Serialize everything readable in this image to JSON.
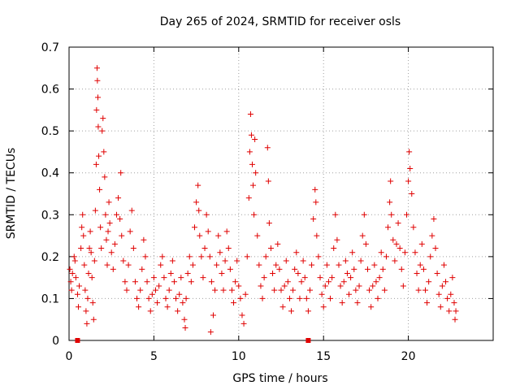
{
  "chart_data": {
    "type": "scatter",
    "title": "Day 265 of 2024, SRMTID for receiver osls",
    "xlabel": "GPS time / hours",
    "ylabel": "SRMTID / TECUs",
    "xlim": [
      0,
      25
    ],
    "ylim": [
      0,
      0.7
    ],
    "xticks": [
      0,
      5,
      10,
      15,
      20
    ],
    "xtick_labels": [
      "0",
      "5",
      "10",
      "15",
      "20"
    ],
    "yticks": [
      0,
      0.1,
      0.2,
      0.3,
      0.4,
      0.5,
      0.6,
      0.7
    ],
    "ytick_labels": [
      "0",
      "0.1",
      "0.2",
      "0.3",
      "0.4",
      "0.5",
      "0.6",
      "0.7"
    ],
    "grid": true,
    "marker": "+",
    "color": "#e00000",
    "series": [
      {
        "name": "SRMTID",
        "points": [
          [
            0.05,
            0.17
          ],
          [
            0.1,
            0.14
          ],
          [
            0.15,
            0.12
          ],
          [
            0.2,
            0.16
          ],
          [
            0.3,
            0.2
          ],
          [
            0.35,
            0.19
          ],
          [
            0.4,
            0.15
          ],
          [
            0.5,
            0.11
          ],
          [
            0.55,
            0.08
          ],
          [
            0.6,
            0.13
          ],
          [
            0.7,
            0.22
          ],
          [
            0.75,
            0.27
          ],
          [
            0.8,
            0.3
          ],
          [
            0.85,
            0.25
          ],
          [
            0.9,
            0.18
          ],
          [
            0.95,
            0.12
          ],
          [
            1.0,
            0.07
          ],
          [
            1.05,
            0.04
          ],
          [
            1.1,
            0.1
          ],
          [
            1.15,
            0.16
          ],
          [
            1.2,
            0.22
          ],
          [
            1.25,
            0.26
          ],
          [
            1.3,
            0.21
          ],
          [
            1.35,
            0.15
          ],
          [
            1.4,
            0.09
          ],
          [
            1.45,
            0.05
          ],
          [
            1.5,
            0.19
          ],
          [
            1.55,
            0.31
          ],
          [
            1.6,
            0.42
          ],
          [
            1.62,
            0.55
          ],
          [
            1.65,
            0.65
          ],
          [
            1.67,
            0.62
          ],
          [
            1.7,
            0.58
          ],
          [
            1.72,
            0.51
          ],
          [
            1.75,
            0.44
          ],
          [
            1.8,
            0.36
          ],
          [
            1.85,
            0.27
          ],
          [
            1.9,
            0.22
          ],
          [
            1.95,
            0.5
          ],
          [
            2.0,
            0.53
          ],
          [
            2.05,
            0.45
          ],
          [
            2.1,
            0.39
          ],
          [
            2.15,
            0.3
          ],
          [
            2.2,
            0.24
          ],
          [
            2.25,
            0.18
          ],
          [
            2.3,
            0.26
          ],
          [
            2.35,
            0.33
          ],
          [
            2.4,
            0.28
          ],
          [
            2.5,
            0.21
          ],
          [
            2.6,
            0.17
          ],
          [
            2.7,
            0.23
          ],
          [
            2.8,
            0.3
          ],
          [
            2.9,
            0.34
          ],
          [
            3.0,
            0.29
          ],
          [
            3.05,
            0.4
          ],
          [
            3.1,
            0.25
          ],
          [
            3.2,
            0.19
          ],
          [
            3.3,
            0.14
          ],
          [
            3.4,
            0.12
          ],
          [
            3.5,
            0.18
          ],
          [
            3.6,
            0.26
          ],
          [
            3.7,
            0.31
          ],
          [
            3.8,
            0.22
          ],
          [
            3.9,
            0.14
          ],
          [
            4.0,
            0.1
          ],
          [
            4.1,
            0.08
          ],
          [
            4.2,
            0.12
          ],
          [
            4.3,
            0.17
          ],
          [
            4.4,
            0.24
          ],
          [
            4.5,
            0.2
          ],
          [
            4.6,
            0.14
          ],
          [
            4.7,
            0.1
          ],
          [
            4.8,
            0.07
          ],
          [
            4.9,
            0.11
          ],
          [
            5.0,
            0.15
          ],
          [
            5.1,
            0.12
          ],
          [
            5.2,
            0.09
          ],
          [
            5.3,
            0.13
          ],
          [
            5.4,
            0.18
          ],
          [
            5.5,
            0.2
          ],
          [
            5.6,
            0.15
          ],
          [
            5.7,
            0.1
          ],
          [
            5.8,
            0.08
          ],
          [
            5.9,
            0.12
          ],
          [
            6.0,
            0.16
          ],
          [
            6.1,
            0.19
          ],
          [
            6.2,
            0.14
          ],
          [
            6.3,
            0.1
          ],
          [
            6.4,
            0.07
          ],
          [
            6.5,
            0.11
          ],
          [
            6.6,
            0.15
          ],
          [
            6.7,
            0.09
          ],
          [
            6.8,
            0.05
          ],
          [
            6.85,
            0.03
          ],
          [
            6.9,
            0.1
          ],
          [
            7.0,
            0.16
          ],
          [
            7.1,
            0.2
          ],
          [
            7.2,
            0.14
          ],
          [
            7.3,
            0.18
          ],
          [
            7.4,
            0.27
          ],
          [
            7.5,
            0.33
          ],
          [
            7.6,
            0.37
          ],
          [
            7.65,
            0.31
          ],
          [
            7.7,
            0.25
          ],
          [
            7.8,
            0.2
          ],
          [
            7.9,
            0.15
          ],
          [
            8.0,
            0.22
          ],
          [
            8.1,
            0.3
          ],
          [
            8.2,
            0.26
          ],
          [
            8.3,
            0.2
          ],
          [
            8.35,
            0.02
          ],
          [
            8.4,
            0.14
          ],
          [
            8.5,
            0.06
          ],
          [
            8.6,
            0.12
          ],
          [
            8.7,
            0.18
          ],
          [
            8.8,
            0.25
          ],
          [
            8.9,
            0.21
          ],
          [
            9.0,
            0.16
          ],
          [
            9.1,
            0.12
          ],
          [
            9.2,
            0.19
          ],
          [
            9.3,
            0.26
          ],
          [
            9.4,
            0.22
          ],
          [
            9.5,
            0.17
          ],
          [
            9.6,
            0.12
          ],
          [
            9.7,
            0.09
          ],
          [
            9.8,
            0.14
          ],
          [
            9.9,
            0.19
          ],
          [
            10.0,
            0.13
          ],
          [
            10.1,
            0.1
          ],
          [
            10.2,
            0.06
          ],
          [
            10.3,
            0.04
          ],
          [
            10.4,
            0.11
          ],
          [
            10.5,
            0.2
          ],
          [
            10.6,
            0.34
          ],
          [
            10.65,
            0.45
          ],
          [
            10.7,
            0.54
          ],
          [
            10.75,
            0.49
          ],
          [
            10.8,
            0.42
          ],
          [
            10.85,
            0.37
          ],
          [
            10.9,
            0.3
          ],
          [
            10.95,
            0.48
          ],
          [
            11.0,
            0.4
          ],
          [
            11.1,
            0.25
          ],
          [
            11.2,
            0.18
          ],
          [
            11.3,
            0.13
          ],
          [
            11.4,
            0.1
          ],
          [
            11.5,
            0.15
          ],
          [
            11.6,
            0.2
          ],
          [
            11.7,
            0.46
          ],
          [
            11.75,
            0.38
          ],
          [
            11.8,
            0.28
          ],
          [
            11.9,
            0.22
          ],
          [
            12.0,
            0.16
          ],
          [
            12.1,
            0.12
          ],
          [
            12.2,
            0.18
          ],
          [
            12.3,
            0.23
          ],
          [
            12.4,
            0.17
          ],
          [
            12.5,
            0.12
          ],
          [
            12.6,
            0.08
          ],
          [
            12.7,
            0.13
          ],
          [
            12.8,
            0.19
          ],
          [
            12.9,
            0.14
          ],
          [
            13.0,
            0.1
          ],
          [
            13.1,
            0.07
          ],
          [
            13.2,
            0.12
          ],
          [
            13.3,
            0.17
          ],
          [
            13.4,
            0.21
          ],
          [
            13.5,
            0.16
          ],
          [
            13.6,
            0.1
          ],
          [
            13.7,
            0.14
          ],
          [
            13.8,
            0.19
          ],
          [
            13.9,
            0.15
          ],
          [
            14.0,
            0.1
          ],
          [
            14.1,
            0.07
          ],
          [
            14.2,
            0.12
          ],
          [
            14.3,
            0.18
          ],
          [
            14.4,
            0.29
          ],
          [
            14.5,
            0.36
          ],
          [
            14.55,
            0.33
          ],
          [
            14.6,
            0.25
          ],
          [
            14.7,
            0.2
          ],
          [
            14.8,
            0.15
          ],
          [
            14.9,
            0.11
          ],
          [
            15.0,
            0.08
          ],
          [
            15.1,
            0.13
          ],
          [
            15.2,
            0.18
          ],
          [
            15.3,
            0.14
          ],
          [
            15.4,
            0.1
          ],
          [
            15.5,
            0.15
          ],
          [
            15.6,
            0.22
          ],
          [
            15.7,
            0.3
          ],
          [
            15.8,
            0.24
          ],
          [
            15.9,
            0.18
          ],
          [
            16.0,
            0.13
          ],
          [
            16.1,
            0.09
          ],
          [
            16.2,
            0.14
          ],
          [
            16.3,
            0.19
          ],
          [
            16.4,
            0.16
          ],
          [
            16.5,
            0.11
          ],
          [
            16.6,
            0.15
          ],
          [
            16.7,
            0.21
          ],
          [
            16.8,
            0.17
          ],
          [
            16.9,
            0.12
          ],
          [
            17.0,
            0.09
          ],
          [
            17.1,
            0.13
          ],
          [
            17.2,
            0.19
          ],
          [
            17.3,
            0.25
          ],
          [
            17.4,
            0.3
          ],
          [
            17.5,
            0.23
          ],
          [
            17.6,
            0.17
          ],
          [
            17.7,
            0.12
          ],
          [
            17.8,
            0.08
          ],
          [
            17.9,
            0.13
          ],
          [
            18.0,
            0.18
          ],
          [
            18.1,
            0.14
          ],
          [
            18.2,
            0.1
          ],
          [
            18.3,
            0.15
          ],
          [
            18.4,
            0.21
          ],
          [
            18.5,
            0.17
          ],
          [
            18.6,
            0.12
          ],
          [
            18.7,
            0.2
          ],
          [
            18.8,
            0.27
          ],
          [
            18.9,
            0.33
          ],
          [
            18.95,
            0.38
          ],
          [
            19.0,
            0.3
          ],
          [
            19.1,
            0.24
          ],
          [
            19.2,
            0.19
          ],
          [
            19.3,
            0.23
          ],
          [
            19.4,
            0.28
          ],
          [
            19.5,
            0.22
          ],
          [
            19.6,
            0.17
          ],
          [
            19.7,
            0.13
          ],
          [
            19.8,
            0.21
          ],
          [
            19.9,
            0.3
          ],
          [
            20.0,
            0.38
          ],
          [
            20.05,
            0.45
          ],
          [
            20.1,
            0.41
          ],
          [
            20.2,
            0.35
          ],
          [
            20.3,
            0.27
          ],
          [
            20.4,
            0.21
          ],
          [
            20.5,
            0.16
          ],
          [
            20.6,
            0.12
          ],
          [
            20.7,
            0.18
          ],
          [
            20.8,
            0.23
          ],
          [
            20.9,
            0.17
          ],
          [
            21.0,
            0.12
          ],
          [
            21.1,
            0.09
          ],
          [
            21.2,
            0.14
          ],
          [
            21.3,
            0.2
          ],
          [
            21.4,
            0.25
          ],
          [
            21.5,
            0.29
          ],
          [
            21.6,
            0.22
          ],
          [
            21.7,
            0.16
          ],
          [
            21.8,
            0.11
          ],
          [
            21.9,
            0.08
          ],
          [
            22.0,
            0.13
          ],
          [
            22.1,
            0.18
          ],
          [
            22.2,
            0.14
          ],
          [
            22.3,
            0.1
          ],
          [
            22.4,
            0.07
          ],
          [
            22.5,
            0.11
          ],
          [
            22.6,
            0.15
          ],
          [
            22.7,
            0.09
          ],
          [
            22.75,
            0.05
          ],
          [
            22.8,
            0.07
          ]
        ]
      }
    ],
    "markers_on_axis": [
      0.5,
      14.1
    ]
  }
}
